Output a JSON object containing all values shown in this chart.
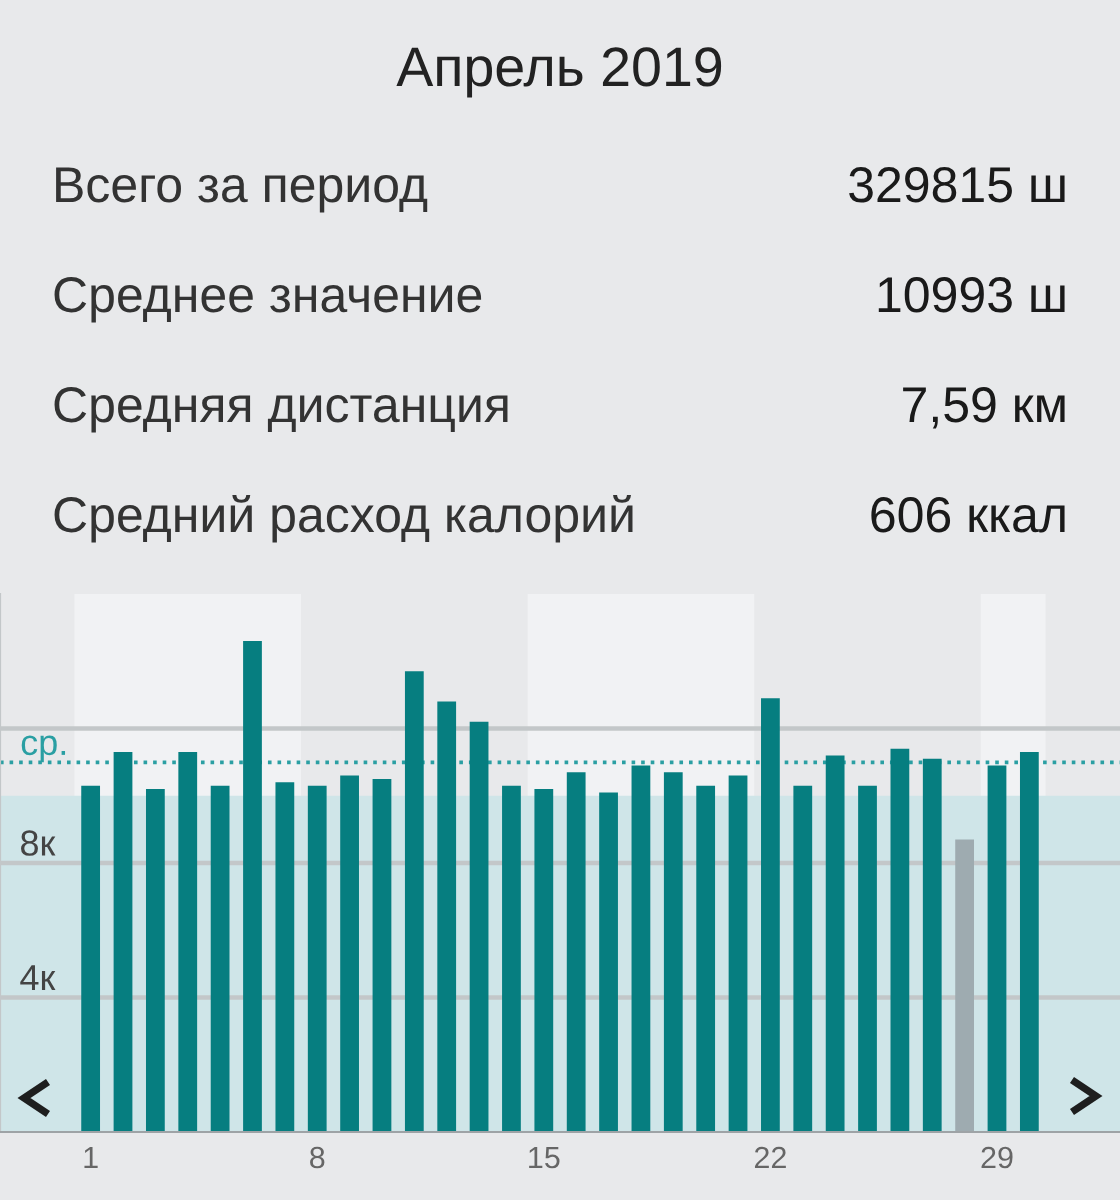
{
  "chart_data": {
    "type": "bar",
    "title": "Апрель 2019",
    "annotations": [
      "Всего за период",
      "329815 ш",
      "Среднее значение",
      "10993 ш",
      "Средняя дистанция",
      "7,59 км",
      "Средний расход калорий",
      "606 ккал"
    ],
    "x": [
      1,
      2,
      3,
      4,
      5,
      6,
      7,
      8,
      9,
      10,
      11,
      12,
      13,
      14,
      15,
      16,
      17,
      18,
      19,
      20,
      21,
      22,
      23,
      24,
      25,
      26,
      27,
      28,
      29,
      30
    ],
    "values": [
      10.3,
      11.3,
      10.2,
      11.3,
      10.3,
      14.6,
      10.4,
      10.3,
      10.6,
      10.5,
      13.7,
      12.8,
      12.2,
      10.3,
      10.2,
      10.7,
      10.1,
      10.9,
      10.7,
      10.3,
      10.6,
      12.9,
      10.3,
      11.2,
      10.3,
      11.4,
      11.1,
      8.7,
      10.9,
      11.3
    ],
    "colors": [
      "#067e80",
      "#067e80",
      "#067e80",
      "#067e80",
      "#067e80",
      "#067e80",
      "#067e80",
      "#067e80",
      "#067e80",
      "#067e80",
      "#067e80",
      "#067e80",
      "#067e80",
      "#067e80",
      "#067e80",
      "#067e80",
      "#067e80",
      "#067e80",
      "#067e80",
      "#067e80",
      "#067e80",
      "#067e80",
      "#067e80",
      "#067e80",
      "#067e80",
      "#067e80",
      "#067e80",
      "#9eabb0",
      "#067e80",
      "#067e80"
    ],
    "xlim": [
      -1.8,
      32.8
    ],
    "xticks": [
      1,
      8,
      15,
      22,
      29
    ],
    "ylim": [
      0,
      16
    ],
    "yticks": [
      {
        "value": 4,
        "label": "4к"
      },
      {
        "value": 8,
        "label": "8к"
      },
      {
        "value": 12,
        "label": null
      }
    ],
    "grid": "y",
    "ref_lines": [
      {
        "axis": "y",
        "value": 10.993,
        "label": "ср.",
        "color": "#2a9fa3",
        "line_style": "dotted"
      }
    ],
    "bands": [
      {
        "axis": "x",
        "from": 0.5,
        "to": 7.5,
        "color": "#f1f2f4"
      },
      {
        "axis": "x",
        "from": 14.5,
        "to": 21.5,
        "color": "#f1f2f4"
      },
      {
        "axis": "x",
        "from": 28.5,
        "to": 30.5,
        "color": "#f1f2f4"
      },
      {
        "axis": "y",
        "from": 0,
        "to": 10,
        "color": "#cfe5e8"
      }
    ]
  }
}
